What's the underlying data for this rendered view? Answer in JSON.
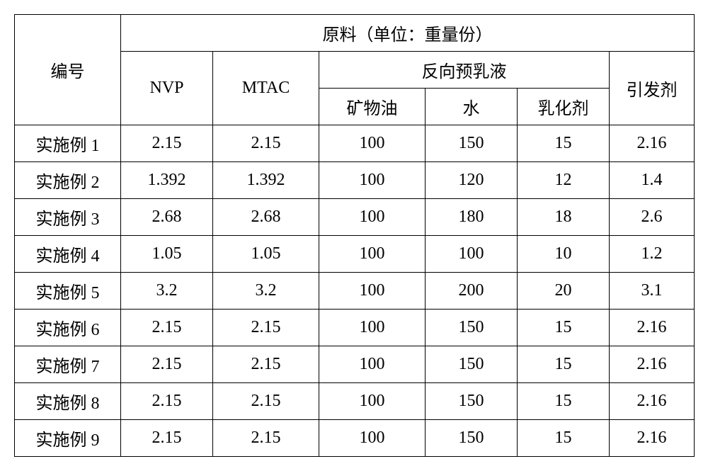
{
  "header": {
    "col0": "编号",
    "group": "原料（单位：重量份）",
    "nvp": "NVP",
    "mtac": "MTAC",
    "sub_group": "反向预乳液",
    "oil": "矿物油",
    "water": "水",
    "emulsifier": "乳化剂",
    "initiator": "引发剂"
  },
  "rows": [
    {
      "label": "实施例 1",
      "nvp": "2.15",
      "mtac": "2.15",
      "oil": "100",
      "water": "150",
      "emu": "15",
      "init": "2.16"
    },
    {
      "label": "实施例 2",
      "nvp": "1.392",
      "mtac": "1.392",
      "oil": "100",
      "water": "120",
      "emu": "12",
      "init": "1.4"
    },
    {
      "label": "实施例 3",
      "nvp": "2.68",
      "mtac": "2.68",
      "oil": "100",
      "water": "180",
      "emu": "18",
      "init": "2.6"
    },
    {
      "label": "实施例 4",
      "nvp": "1.05",
      "mtac": "1.05",
      "oil": "100",
      "water": "100",
      "emu": "10",
      "init": "1.2"
    },
    {
      "label": "实施例 5",
      "nvp": "3.2",
      "mtac": "3.2",
      "oil": "100",
      "water": "200",
      "emu": "20",
      "init": "3.1"
    },
    {
      "label": "实施例 6",
      "nvp": "2.15",
      "mtac": "2.15",
      "oil": "100",
      "water": "150",
      "emu": "15",
      "init": "2.16"
    },
    {
      "label": "实施例 7",
      "nvp": "2.15",
      "mtac": "2.15",
      "oil": "100",
      "water": "150",
      "emu": "15",
      "init": "2.16"
    },
    {
      "label": "实施例 8",
      "nvp": "2.15",
      "mtac": "2.15",
      "oil": "100",
      "water": "150",
      "emu": "15",
      "init": "2.16"
    },
    {
      "label": "实施例 9",
      "nvp": "2.15",
      "mtac": "2.15",
      "oil": "100",
      "water": "150",
      "emu": "15",
      "init": "2.16"
    }
  ],
  "style": {
    "border_color": "#000000",
    "bg_color": "#ffffff",
    "text_color": "#000000",
    "font_size_pt": 18,
    "cell_align": "center"
  }
}
